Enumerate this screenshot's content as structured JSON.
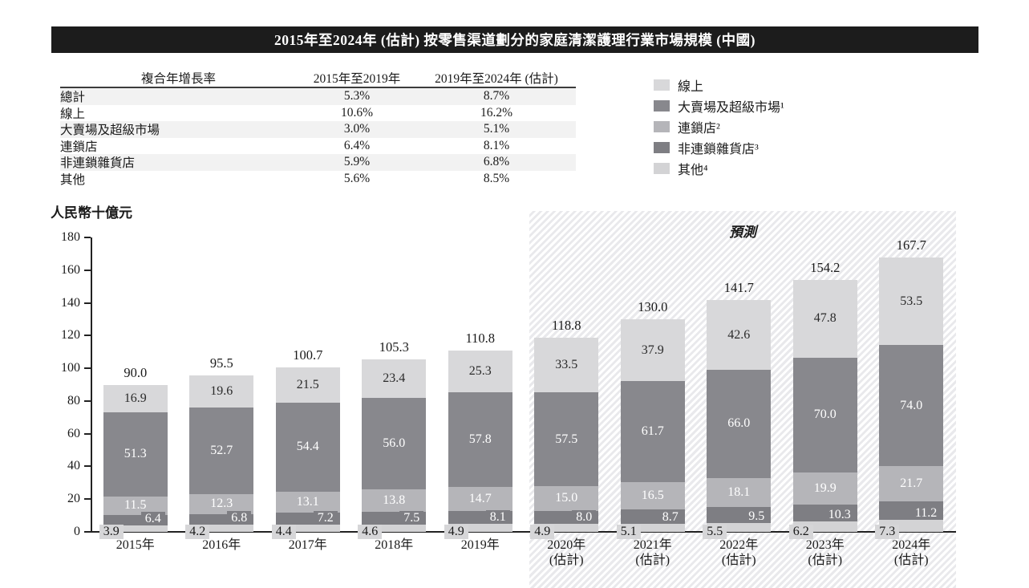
{
  "title": "2015年至2024年 (估計) 按零售渠道劃分的家庭清潔護理行業市場規模 (中國)",
  "table": {
    "headers": [
      "複合年增長率",
      "2015年至2019年",
      "2019年至2024年 (估計)"
    ],
    "rows": [
      {
        "label": "總計",
        "cagr_2015_2019": "5.3%",
        "cagr_2019_2024": "8.7%"
      },
      {
        "label": "線上",
        "cagr_2015_2019": "10.6%",
        "cagr_2019_2024": "16.2%"
      },
      {
        "label": "大賣場及超級市場",
        "cagr_2015_2019": "3.0%",
        "cagr_2019_2024": "5.1%"
      },
      {
        "label": "連鎖店",
        "cagr_2015_2019": "6.4%",
        "cagr_2019_2024": "8.1%"
      },
      {
        "label": "非連鎖雜貨店",
        "cagr_2015_2019": "5.9%",
        "cagr_2019_2024": "6.8%"
      },
      {
        "label": "其他",
        "cagr_2015_2019": "5.6%",
        "cagr_2019_2024": "8.5%"
      }
    ]
  },
  "legend": {
    "items": [
      {
        "label": "線上",
        "color_key": "online"
      },
      {
        "label": "大賣場及超級市場¹",
        "color_key": "hyper"
      },
      {
        "label": "連鎖店²",
        "color_key": "chain"
      },
      {
        "label": "非連鎖雜貨店³",
        "color_key": "nonchain"
      },
      {
        "label": "其他⁴",
        "color_key": "other"
      }
    ]
  },
  "chart_data": {
    "type": "bar",
    "stacked": true,
    "title": "2015年至2024年 (估計) 按零售渠道劃分的家庭清潔護理行業市場規模 (中國)",
    "ylabel": "人民幣十億元",
    "ylim": [
      0,
      180
    ],
    "ytick_step": 20,
    "yticks": [
      0,
      20,
      40,
      60,
      80,
      100,
      120,
      140,
      160,
      180
    ],
    "grid": false,
    "legend_position": "upper-right",
    "forecast_label": "預測",
    "estimate_suffix": "(估計)",
    "estimate_from_index": 5,
    "categories": [
      "2015年",
      "2016年",
      "2017年",
      "2018年",
      "2019年",
      "2020年",
      "2021年",
      "2022年",
      "2023年",
      "2024年"
    ],
    "series": [
      {
        "name": "其他",
        "color_key": "other",
        "values": [
          3.9,
          4.2,
          4.4,
          4.6,
          4.9,
          4.9,
          5.1,
          5.5,
          6.2,
          7.3
        ]
      },
      {
        "name": "非連鎖雜貨店",
        "color_key": "nonchain",
        "values": [
          6.4,
          6.8,
          7.2,
          7.5,
          8.1,
          8.0,
          8.7,
          9.5,
          10.3,
          11.2
        ]
      },
      {
        "name": "連鎖店",
        "color_key": "chain",
        "values": [
          11.5,
          12.3,
          13.1,
          13.8,
          14.7,
          15.0,
          16.5,
          18.1,
          19.9,
          21.7
        ]
      },
      {
        "name": "大賣場及超級市場",
        "color_key": "hyper",
        "values": [
          51.3,
          52.7,
          54.4,
          56.0,
          57.8,
          57.5,
          61.7,
          66.0,
          70.0,
          74.0
        ]
      },
      {
        "name": "線上",
        "color_key": "online",
        "values": [
          16.9,
          19.6,
          21.5,
          23.4,
          25.3,
          33.5,
          37.9,
          42.6,
          47.8,
          53.5
        ]
      }
    ],
    "totals": [
      90.0,
      95.5,
      100.7,
      105.3,
      110.8,
      118.8,
      130.0,
      141.7,
      154.2,
      167.7
    ]
  },
  "colors": {
    "title_bg": "#1c1c1c",
    "stripe": "#f2f2f2",
    "hatch": "#e9e9ec",
    "badge_light": "#d6d6d8",
    "online": "#d8d8da",
    "hyper": "#88888d",
    "chain": "#b5b5b9",
    "nonchain": "#7e7e83",
    "other": "#d3d3d5",
    "axis": "#222222",
    "bar_text_light": "#ffffff",
    "bar_text_dark": "#2a2a2a"
  }
}
